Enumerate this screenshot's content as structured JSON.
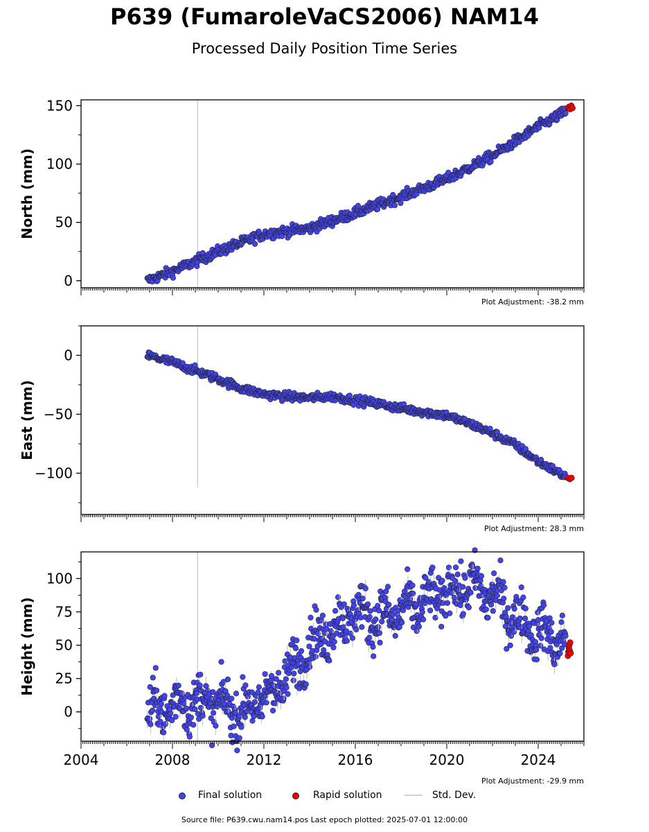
{
  "title": "P639 (FumaroleVaCS2006) NAM14",
  "subtitle": "Processed Daily Position Time Series",
  "colors": {
    "final": "#4444ee",
    "rapid": "#ee0000",
    "std": "#d0d0d0",
    "edge": "#222222"
  },
  "legend": {
    "final": "Final solution",
    "rapid": "Rapid solution",
    "std": "Std. Dev."
  },
  "footer": "Source file: P639.cwu.nam14.pos  Last epoch plotted: 2025-07-01 12:00:00",
  "chart_data": [
    {
      "type": "scatter",
      "ylabel": "North (mm)",
      "adjustment": "Plot Adjustment: -38.2 mm",
      "xlim": [
        2004.0,
        2026.0
      ],
      "ylim": [
        -6,
        155
      ],
      "yticks": [
        0,
        50,
        100,
        150
      ],
      "xticks": [],
      "vline": {
        "x": 2009.1,
        "y_range": [
          -6,
          155
        ]
      },
      "final_trend": {
        "x": [
          2006.9,
          2008.0,
          2010.0,
          2012.0,
          2014.0,
          2016.0,
          2018.0,
          2020.0,
          2022.0,
          2024.0,
          2025.2
        ],
        "y": [
          0,
          8,
          25,
          40,
          45,
          58,
          72,
          87,
          107,
          132,
          145
        ]
      },
      "noise": 2.2,
      "rapid": {
        "x": [
          2025.3,
          2025.35,
          2025.4,
          2025.45,
          2025.5
        ],
        "y": [
          148,
          149,
          147,
          150,
          148
        ]
      }
    },
    {
      "type": "scatter",
      "ylabel": "East (mm)",
      "adjustment": "Plot Adjustment: 28.3 mm",
      "xlim": [
        2004.0,
        2026.0
      ],
      "ylim": [
        -135,
        25
      ],
      "yticks": [
        0,
        -50,
        -100
      ],
      "xticks": [],
      "vline": {
        "x": 2009.1,
        "y_range": [
          -112,
          25
        ]
      },
      "final_trend": {
        "x": [
          2006.9,
          2008.0,
          2009.0,
          2010.0,
          2011.0,
          2012.0,
          2013.0,
          2014.0,
          2015.0,
          2016.0,
          2017.0,
          2018.0,
          2019.0,
          2020.0,
          2021.0,
          2022.0,
          2023.0,
          2024.0,
          2025.2
        ],
        "y": [
          0,
          -6,
          -13,
          -20,
          -28,
          -33,
          -35,
          -36,
          -35,
          -38,
          -41,
          -45,
          -48,
          -51,
          -58,
          -66,
          -76,
          -90,
          -103
        ]
      },
      "noise": 1.8,
      "rapid": {
        "x": [
          2025.3,
          2025.38,
          2025.46
        ],
        "y": [
          -104,
          -105,
          -104
        ]
      }
    },
    {
      "type": "scatter",
      "ylabel": "Height (mm)",
      "adjustment": "Plot Adjustment: -29.9 mm",
      "xlim": [
        2004.0,
        2026.0
      ],
      "ylim": [
        -22,
        120
      ],
      "yticks": [
        0,
        25,
        50,
        75,
        100
      ],
      "xticks": [
        2004,
        2008,
        2012,
        2016,
        2020,
        2024
      ],
      "vline": {
        "x": 2009.1,
        "y_range": [
          -22,
          120
        ]
      },
      "final_trend": {
        "x": [
          2006.9,
          2008.0,
          2009.0,
          2010.0,
          2011.0,
          2012.0,
          2013.0,
          2014.0,
          2015.0,
          2016.0,
          2017.0,
          2018.0,
          2019.0,
          2020.0,
          2021.0,
          2022.0,
          2023.0,
          2024.0,
          2025.2
        ],
        "y": [
          0,
          5,
          8,
          6,
          0,
          10,
          25,
          50,
          62,
          75,
          70,
          75,
          82,
          90,
          95,
          88,
          70,
          60,
          52
        ]
      },
      "noise": 9,
      "seasonal": 8,
      "rapid": {
        "x": [
          2025.3,
          2025.32,
          2025.34,
          2025.36,
          2025.38,
          2025.4,
          2025.42
        ],
        "y": [
          42,
          45,
          48,
          50,
          46,
          52,
          44
        ]
      }
    }
  ]
}
